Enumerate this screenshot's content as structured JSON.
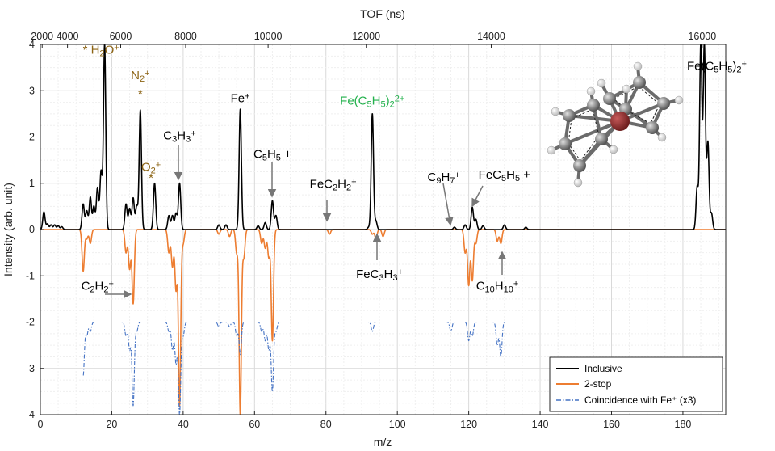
{
  "chart_data": {
    "type": "line",
    "xlabel": "m/z",
    "ylabel": "Intensity (arb. unit)",
    "top_axis_label": "TOF (ns)",
    "xlim": [
      0,
      192
    ],
    "ylim": [
      -4,
      4
    ],
    "grid": true,
    "legend_position": "bottom-right",
    "x_ticks": [
      "0",
      "20",
      "40",
      "60",
      "80",
      "100",
      "120",
      "140",
      "160",
      "180"
    ],
    "y_ticks": [
      "-4",
      "-3",
      "-2",
      "-1",
      "0",
      "1",
      "2",
      "3",
      "4"
    ],
    "top_ticks": [
      {
        "label": "2000",
        "mz": 0.5
      },
      {
        "label": "4000",
        "mz": 7.6
      },
      {
        "label": "6000",
        "mz": 22.5
      },
      {
        "label": "8000",
        "mz": 40.7
      },
      {
        "label": "10000",
        "mz": 63.8
      },
      {
        "label": "12000",
        "mz": 91.3
      },
      {
        "label": "14000",
        "mz": 126.3
      },
      {
        "label": "16000",
        "mz": 185.4
      }
    ],
    "series": [
      {
        "name": "Inclusive",
        "color": "#000000",
        "style": "solid",
        "baseline": 0,
        "peaks": [
          [
            1,
            0.38
          ],
          [
            2,
            0.12
          ],
          [
            3,
            0.1
          ],
          [
            4,
            0.1
          ],
          [
            5,
            0.08
          ],
          [
            6,
            0.06
          ],
          [
            12,
            0.55
          ],
          [
            13,
            0.4
          ],
          [
            14,
            0.7
          ],
          [
            15,
            0.5
          ],
          [
            16,
            0.9
          ],
          [
            17,
            1.25
          ],
          [
            18,
            4.0
          ],
          [
            24,
            0.55
          ],
          [
            25,
            0.45
          ],
          [
            26,
            0.68
          ],
          [
            27,
            0.5
          ],
          [
            28,
            2.58
          ],
          [
            32,
            1.0
          ],
          [
            36,
            0.3
          ],
          [
            37,
            0.3
          ],
          [
            38,
            0.35
          ],
          [
            39,
            1.0
          ],
          [
            50,
            0.1
          ],
          [
            52,
            0.1
          ],
          [
            56,
            2.6
          ],
          [
            61,
            0.08
          ],
          [
            63,
            0.15
          ],
          [
            65,
            0.62
          ],
          [
            66,
            0.3
          ],
          [
            92,
            0.05
          ],
          [
            93,
            2.5
          ],
          [
            94,
            0.18
          ],
          [
            116,
            0.05
          ],
          [
            119,
            0.1
          ],
          [
            121,
            0.48
          ],
          [
            122,
            0.22
          ],
          [
            124,
            0.08
          ],
          [
            130,
            0.1
          ],
          [
            136,
            0.05
          ],
          [
            184,
            0.92
          ],
          [
            185,
            4.0
          ],
          [
            186,
            4.0
          ],
          [
            187,
            1.88
          ],
          [
            188,
            0.35
          ]
        ]
      },
      {
        "name": "2-stop",
        "color": "#ed7d31",
        "style": "solid",
        "baseline": 0,
        "peaks": [
          [
            12,
            -0.9
          ],
          [
            13,
            -0.2
          ],
          [
            14,
            -0.3
          ],
          [
            24,
            -0.5
          ],
          [
            25,
            -0.85
          ],
          [
            26,
            -1.6
          ],
          [
            36,
            -0.5
          ],
          [
            37,
            -0.8
          ],
          [
            38,
            -1.3
          ],
          [
            39,
            -3.8
          ],
          [
            40,
            -0.3
          ],
          [
            50,
            -0.1
          ],
          [
            53,
            -0.15
          ],
          [
            55,
            -0.5
          ],
          [
            56,
            -4.0
          ],
          [
            57,
            -0.6
          ],
          [
            62,
            -0.3
          ],
          [
            63,
            -0.4
          ],
          [
            64,
            -0.6
          ],
          [
            65,
            -2.4
          ],
          [
            81,
            -0.1
          ],
          [
            93,
            -0.1
          ],
          [
            94,
            -0.2
          ],
          [
            96,
            -0.15
          ],
          [
            119,
            -0.5
          ],
          [
            120,
            -1.2
          ],
          [
            121,
            -1.1
          ],
          [
            122,
            -0.3
          ],
          [
            128,
            -0.25
          ],
          [
            129,
            -0.3
          ]
        ]
      },
      {
        "name": "Coincidence with Fe⁺ (x3)",
        "color": "#4472c4",
        "style": "dashdot",
        "baseline": -2,
        "range": [
          12,
          192
        ],
        "peaks": [
          [
            12,
            -3.15
          ],
          [
            13,
            -2.3
          ],
          [
            14,
            -2.2
          ],
          [
            24,
            -2.3
          ],
          [
            25,
            -2.6
          ],
          [
            26,
            -3.8
          ],
          [
            27,
            -2.2
          ],
          [
            36,
            -2.2
          ],
          [
            37,
            -2.6
          ],
          [
            38,
            -2.9
          ],
          [
            39,
            -4.0
          ],
          [
            40,
            -2.3
          ],
          [
            50,
            -2.1
          ],
          [
            53,
            -2.1
          ],
          [
            55,
            -2.3
          ],
          [
            56,
            -2.7
          ],
          [
            62,
            -2.2
          ],
          [
            63,
            -2.4
          ],
          [
            64,
            -2.6
          ],
          [
            65,
            -3.5
          ],
          [
            66,
            -2.2
          ],
          [
            93,
            -2.2
          ],
          [
            115,
            -2.2
          ],
          [
            120,
            -2.4
          ],
          [
            121,
            -2.3
          ],
          [
            128,
            -2.5
          ],
          [
            129,
            -2.75
          ]
        ]
      }
    ],
    "annotations": [
      {
        "id": "h2o",
        "parts": [
          [
            "*",
            ""
          ],
          [
            " H",
            ""
          ],
          [
            "2",
            "sub"
          ],
          [
            "O",
            ""
          ],
          [
            "+",
            "sup"
          ]
        ],
        "x": 17,
        "y": 3.8,
        "color": "#8c6414"
      },
      {
        "id": "n2",
        "parts": [
          [
            "N",
            ""
          ],
          [
            "2",
            "sub"
          ],
          [
            "+",
            "sup"
          ]
        ],
        "x": 28,
        "y": 3.25,
        "color": "#8c6414"
      },
      {
        "id": "n2-star",
        "parts": [
          [
            "*",
            ""
          ]
        ],
        "x": 28,
        "y": 2.85,
        "color": "#8c6414"
      },
      {
        "id": "o2",
        "parts": [
          [
            "O",
            ""
          ],
          [
            "2",
            "sub"
          ],
          [
            "+",
            "sup"
          ]
        ],
        "x": 31,
        "y": 1.27,
        "color": "#8c6414"
      },
      {
        "id": "o2-star",
        "parts": [
          [
            "*",
            ""
          ]
        ],
        "x": 31,
        "y": 1.03,
        "color": "#8c6414"
      },
      {
        "id": "c3h3",
        "parts": [
          [
            "C",
            ""
          ],
          [
            "3",
            "sub"
          ],
          [
            "H",
            ""
          ],
          [
            "3",
            "sub"
          ],
          [
            "+",
            "sup"
          ]
        ],
        "x": 39,
        "y": 1.95,
        "color": "#000000"
      },
      {
        "id": "fe",
        "parts": [
          [
            "Fe",
            ""
          ],
          [
            "+",
            "sup"
          ]
        ],
        "x": 56,
        "y": 2.75,
        "color": "#000000"
      },
      {
        "id": "c5h5",
        "parts": [
          [
            "C",
            ""
          ],
          [
            "5",
            "sub"
          ],
          [
            "H",
            ""
          ],
          [
            "5",
            "sub"
          ],
          [
            " +",
            ""
          ]
        ],
        "x": 65,
        "y": 1.55,
        "color": "#000000"
      },
      {
        "id": "fecp2-2plus",
        "parts": [
          [
            "Fe(C",
            ""
          ],
          [
            "5",
            "sub"
          ],
          [
            "H",
            ""
          ],
          [
            "5",
            "sub"
          ],
          [
            ")",
            ""
          ],
          [
            "2",
            "sub"
          ],
          [
            "2+",
            "sup"
          ]
        ],
        "x": 93,
        "y": 2.7,
        "color": "#22b14c"
      },
      {
        "id": "fec2h2",
        "parts": [
          [
            "FeC",
            ""
          ],
          [
            "2",
            "sub"
          ],
          [
            "H",
            ""
          ],
          [
            "2",
            "sub"
          ],
          [
            "+",
            "sup"
          ]
        ],
        "x": 82,
        "y": 0.9,
        "color": "#000000"
      },
      {
        "id": "c9h7",
        "parts": [
          [
            "C",
            ""
          ],
          [
            "9",
            "sub"
          ],
          [
            "H",
            ""
          ],
          [
            "7",
            "sub"
          ],
          [
            "+",
            "sup"
          ]
        ],
        "x": 113,
        "y": 1.05,
        "color": "#000000"
      },
      {
        "id": "fec5h5",
        "parts": [
          [
            "FeC",
            ""
          ],
          [
            "5",
            "sub"
          ],
          [
            "H",
            ""
          ],
          [
            "5",
            "sub"
          ],
          [
            " +",
            ""
          ]
        ],
        "x": 130,
        "y": 1.1,
        "color": "#000000"
      },
      {
        "id": "fecp2",
        "parts": [
          [
            "Fe(C",
            ""
          ],
          [
            "5",
            "sub"
          ],
          [
            "H",
            ""
          ],
          [
            "5",
            "sub"
          ],
          [
            ")",
            ""
          ],
          [
            "2",
            "sub"
          ],
          [
            "+",
            "sup"
          ]
        ],
        "x": 189.5,
        "y": 3.45,
        "color": "#000000"
      },
      {
        "id": "fec3h3",
        "parts": [
          [
            "FeC",
            ""
          ],
          [
            "3",
            "sub"
          ],
          [
            "H",
            ""
          ],
          [
            "3",
            "sub"
          ],
          [
            "+",
            "sup"
          ]
        ],
        "x": 95,
        "y": -1.05,
        "color": "#000000"
      },
      {
        "id": "c10h10",
        "parts": [
          [
            "C",
            ""
          ],
          [
            "10",
            "sub"
          ],
          [
            "H",
            ""
          ],
          [
            "10",
            "sub"
          ],
          [
            "+",
            "sup"
          ]
        ],
        "x": 128,
        "y": -1.3,
        "color": "#000000"
      },
      {
        "id": "c2h2",
        "parts": [
          [
            "C",
            ""
          ],
          [
            "2",
            "sub"
          ],
          [
            "H",
            ""
          ],
          [
            "2",
            "sub"
          ],
          [
            "+",
            "sup"
          ]
        ],
        "x": 16,
        "y": -1.3,
        "color": "#000000"
      }
    ]
  }
}
